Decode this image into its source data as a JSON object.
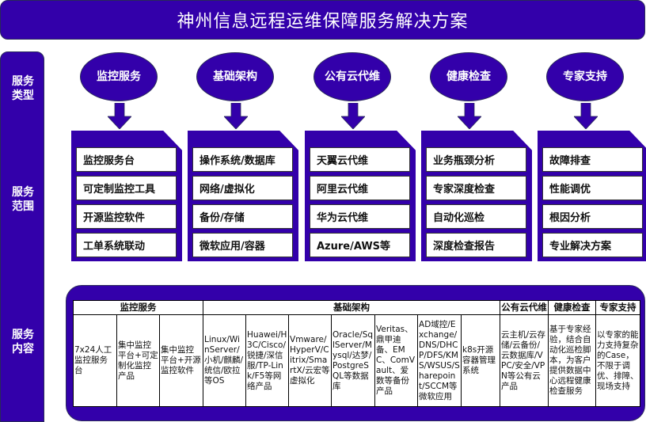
{
  "title": "神州信息远程运维保障服务解决方案",
  "sidebar": [
    "服务类型",
    "服务范围",
    "服务内容"
  ],
  "color": "#3300aa",
  "services": [
    {
      "name": "监控服务",
      "name_lines": [
        "监控",
        "服务"
      ],
      "items": [
        "监控服务台",
        "可定制监控工具",
        "开源监控软件",
        "工单系统联动"
      ]
    },
    {
      "name": "基础架构",
      "name_lines": [
        "基础",
        "架构"
      ],
      "items": [
        "操作系统/数据库",
        "网络/虚拟化",
        "备份/存储",
        "微软应用/容器"
      ]
    },
    {
      "name": "公有云代维",
      "name_lines": [
        "公有云",
        "代维"
      ],
      "items": [
        "天翼云代维",
        "阿里云代维",
        "华为云代维",
        "Azure/AWS等"
      ]
    },
    {
      "name": "健康检查",
      "name_lines": [
        "健康",
        "检查"
      ],
      "items": [
        "业务瓶颈分析",
        "专家深度检查",
        "自动化巡检",
        "深度检查报告"
      ]
    },
    {
      "name": "专家支持",
      "name_lines": [
        "专家",
        "支持"
      ],
      "items": [
        "故障排查",
        "性能调优",
        "根因分析",
        "专业解决方案"
      ]
    }
  ],
  "table": {
    "headers": [
      {
        "label": "监控服务",
        "span": 3
      },
      {
        "label": "基础架构",
        "span": 7
      },
      {
        "label": "公有云代维",
        "span": 1
      },
      {
        "label": "健康检查",
        "span": 1
      },
      {
        "label": "专家支持",
        "span": 1
      }
    ],
    "cells": [
      "7x24人工监控服务台",
      "集中监控平台+可定制化监控产品",
      "集中监控平台+开源监控软件",
      "Linux/WinServer/小机/麒麟/统信/欧拉等OS",
      "Huawei/H3C/Cisco/锐捷/深信服/TP-Link/F5等网络产品",
      "Vmware/HyperV/Citrix/SmartX/云宏等虚拟化",
      "Oracle/SqlServer/Mysql/达梦/PostgreSQL等数据库",
      "Veritas、鼎甲迪备、EMC、ComVault、爱数等备份产品",
      "AD域控/Exchange/DNS/DHCP/DFS/KMS/WSUS/Sharepoint/SCCM等微软应用",
      "k8s开源容器管理系统",
      "云主机/云存储/云备份/云数据库/VPC/安全/VPN等公有云产品",
      "基于专家经验，结合自动化巡检脚本，为客户提供数据中心远程健康检查服务",
      "以专家的能力支持复杂的Case，不限于调优、排障、现场支持"
    ]
  }
}
